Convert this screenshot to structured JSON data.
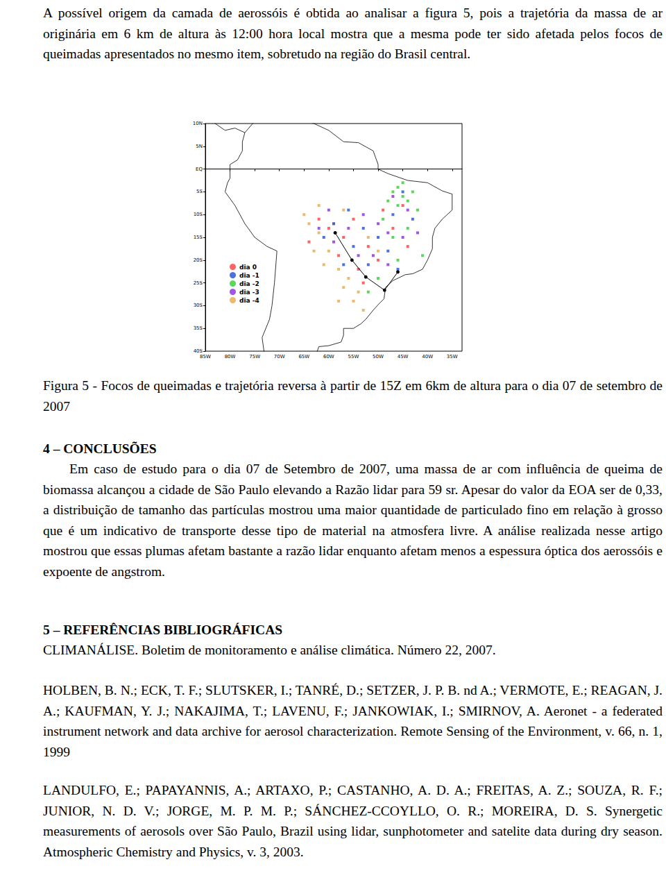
{
  "intro": "A possível origem da camada de aerossóis é obtida ao analisar a figura 5, pois a trajetória da massa de ar originária em 6 km de altura às 12:00 hora local mostra que a mesma pode ter sido afetada pelos focos de queimadas apresentados no mesmo item, sobretudo na região do Brasil central.",
  "chart_data": {
    "type": "scatter",
    "xlim": [
      -85,
      -33
    ],
    "xticks": [
      {
        "value": -85,
        "label": "85W"
      },
      {
        "value": -80,
        "label": "80W"
      },
      {
        "value": -75,
        "label": "75W"
      },
      {
        "value": -70,
        "label": "70W"
      },
      {
        "value": -65,
        "label": "65W"
      },
      {
        "value": -60,
        "label": "60W"
      },
      {
        "value": -55,
        "label": "55W"
      },
      {
        "value": -50,
        "label": "50W"
      },
      {
        "value": -45,
        "label": "45W"
      },
      {
        "value": -40,
        "label": "40W"
      },
      {
        "value": -35,
        "label": "35W"
      }
    ],
    "ylim": [
      -40,
      10
    ],
    "yticks": [
      {
        "value": -40,
        "label": "40S"
      },
      {
        "value": -35,
        "label": "35S"
      },
      {
        "value": -30,
        "label": "30S"
      },
      {
        "value": -25,
        "label": "25S"
      },
      {
        "value": -20,
        "label": "20S"
      },
      {
        "value": -15,
        "label": "15S"
      },
      {
        "value": -10,
        "label": "10S"
      },
      {
        "value": -5,
        "label": "5S"
      },
      {
        "value": 0,
        "label": "EQ"
      },
      {
        "value": 5,
        "label": "5N"
      },
      {
        "value": 10,
        "label": "10N"
      }
    ],
    "grid": false,
    "legend": "inside",
    "marker": "square",
    "series": [
      {
        "name": "dia 0",
        "color": "#ff3b3b",
        "values": [
          [
            -60,
            -13
          ],
          [
            -57,
            -15
          ],
          [
            -55,
            -11
          ],
          [
            -52,
            -17
          ],
          [
            -49,
            -9
          ],
          [
            -47,
            -13
          ],
          [
            -62,
            -11
          ],
          [
            -45,
            -8
          ],
          [
            -54,
            -22
          ],
          [
            -50,
            -20
          ],
          [
            -58,
            -19
          ],
          [
            -44,
            -17
          ],
          [
            -64,
            -16
          ],
          [
            -53,
            -25
          ]
        ]
      },
      {
        "name": "dia -1",
        "color": "#1e4fd8",
        "values": [
          [
            -59,
            -12
          ],
          [
            -56,
            -9
          ],
          [
            -53,
            -13
          ],
          [
            -50,
            -15
          ],
          [
            -47,
            -10
          ],
          [
            -45,
            -5
          ],
          [
            -61,
            -15
          ],
          [
            -48,
            -18
          ],
          [
            -55,
            -17
          ],
          [
            -43,
            -11
          ],
          [
            -52,
            -21
          ],
          [
            -57,
            -21
          ],
          [
            -46,
            -22
          ]
        ]
      },
      {
        "name": "dia -2",
        "color": "#33cc33",
        "values": [
          [
            -46,
            -4
          ],
          [
            -45,
            -6
          ],
          [
            -47,
            -5
          ],
          [
            -44,
            -7
          ],
          [
            -43,
            -5
          ],
          [
            -46,
            -8
          ],
          [
            -48,
            -7
          ],
          [
            -45,
            -3
          ],
          [
            -42,
            -9
          ],
          [
            -49,
            -11
          ],
          [
            -44,
            -13
          ],
          [
            -47,
            -15
          ],
          [
            -50,
            -24
          ],
          [
            -52,
            -27
          ],
          [
            -41,
            -19
          ],
          [
            -46,
            -20
          ]
        ]
      },
      {
        "name": "dia -3",
        "color": "#8a2be2",
        "values": [
          [
            -47,
            -6
          ],
          [
            -44,
            -9
          ],
          [
            -50,
            -12
          ],
          [
            -53,
            -10
          ],
          [
            -56,
            -13
          ],
          [
            -59,
            -16
          ],
          [
            -48,
            -14
          ],
          [
            -45,
            -15
          ],
          [
            -51,
            -19
          ],
          [
            -62,
            -13
          ],
          [
            -54,
            -19
          ],
          [
            -42,
            -14
          ],
          [
            -60,
            -9
          ],
          [
            -48,
            -21
          ]
        ]
      },
      {
        "name": "dia -4",
        "color": "#e8a84a",
        "values": [
          [
            -64,
            -12
          ],
          [
            -62,
            -14
          ],
          [
            -60,
            -18
          ],
          [
            -58,
            -22
          ],
          [
            -56,
            -24
          ],
          [
            -54,
            -27
          ],
          [
            -57,
            -26
          ],
          [
            -63,
            -18
          ],
          [
            -65,
            -10
          ],
          [
            -61,
            -21
          ],
          [
            -55,
            -29
          ],
          [
            -59,
            -12
          ],
          [
            -52,
            -15
          ],
          [
            -50,
            -18
          ],
          [
            -57,
            -9
          ],
          [
            -62,
            -8
          ],
          [
            -53,
            -31
          ],
          [
            -58,
            -29
          ]
        ]
      }
    ],
    "trajectory": {
      "color": "#000000",
      "marker": "circle",
      "line_style": "solid",
      "values": [
        [
          -58.7,
          -14
        ],
        [
          -55.3,
          -20
        ],
        [
          -52.5,
          -23.7
        ],
        [
          -48.7,
          -26.6
        ],
        [
          -46,
          -22.6
        ]
      ]
    },
    "coastline": [
      [
        -85,
        12
      ],
      [
        -83,
        10
      ],
      [
        -81,
        8.5
      ],
      [
        -79,
        9
      ],
      [
        -77,
        8
      ],
      [
        -75,
        10.5
      ],
      [
        -72,
        11.5
      ],
      [
        -68,
        10.8
      ],
      [
        -64,
        10.5
      ],
      [
        -60,
        8.5
      ],
      [
        -57,
        6
      ],
      [
        -54,
        5.8
      ],
      [
        -51,
        4
      ],
      [
        -50,
        1
      ],
      [
        -50,
        0
      ],
      [
        -48,
        -1
      ],
      [
        -44,
        -2.5
      ],
      [
        -40,
        -3
      ],
      [
        -37,
        -4.8
      ],
      [
        -35,
        -5.5
      ],
      [
        -35,
        -9
      ],
      [
        -37,
        -11
      ],
      [
        -38.5,
        -13
      ],
      [
        -39,
        -15
      ],
      [
        -39,
        -17.5
      ],
      [
        -40,
        -20
      ],
      [
        -41,
        -22
      ],
      [
        -43,
        -23
      ],
      [
        -44.5,
        -23.2
      ],
      [
        -47,
        -24.5
      ],
      [
        -48.5,
        -26
      ],
      [
        -48.8,
        -28.5
      ],
      [
        -50,
        -29.8
      ],
      [
        -51,
        -31
      ],
      [
        -52.5,
        -33
      ],
      [
        -53.5,
        -34
      ],
      [
        -55,
        -35
      ],
      [
        -57,
        -35
      ],
      [
        -57,
        -36.5
      ],
      [
        -57.5,
        -38
      ],
      [
        -60,
        -38.8
      ],
      [
        -62,
        -39
      ],
      [
        -62.5,
        -40.5
      ],
      [
        -73,
        -41
      ],
      [
        -73.5,
        -37
      ],
      [
        -72,
        -33
      ],
      [
        -71.5,
        -30
      ],
      [
        -71,
        -25
      ],
      [
        -70.5,
        -18
      ],
      [
        -72.5,
        -17
      ],
      [
        -75,
        -15
      ],
      [
        -77,
        -12
      ],
      [
        -79,
        -8
      ],
      [
        -81,
        -5
      ],
      [
        -80.5,
        -3
      ],
      [
        -80,
        -2
      ],
      [
        -80,
        1
      ],
      [
        -78.5,
        2
      ],
      [
        -77.5,
        4
      ],
      [
        -77.5,
        6
      ],
      [
        -77,
        8
      ]
    ]
  },
  "caption": "Figura 5 - Focos de queimadas e trajetória reversa à partir de 15Z em 6km de altura para o dia 07 de setembro de 2007",
  "conclusions": {
    "heading": "4 – CONCLUSÕES",
    "text": "Em caso de estudo para o dia 07 de Setembro de 2007, uma massa de ar com influência de queima de biomassa alcançou a cidade de São Paulo elevando a Razão lidar para 59 sr. Apesar do valor da EOA ser de 0,33, a distribuição de tamanho das partículas mostrou uma maior quantidade de particulado fino em relação à grosso que é um indicativo de transporte desse tipo de material na atmosfera livre. A análise realizada nesse artigo mostrou que essas plumas afetam bastante a razão lidar enquanto afetam menos a espessura óptica dos aerossóis e expoente de angstrom."
  },
  "references": {
    "heading": "5 – REFERÊNCIAS BIBLIOGRÁFICAS",
    "items": [
      "CLIMANÁLISE. Boletim de monitoramento e análise climática. Número 22, 2007.",
      "HOLBEN, B. N.; ECK, T. F.; SLUTSKER, I.; TANRÉ, D.; SETZER, J. P. B. nd A.; VERMOTE, E.; REAGAN, J. A.; KAUFMAN, Y. J.; NAKAJIMA, T.; LAVENU, F.; JANKOWIAK, I.; SMIRNOV, A. Aeronet - a federated instrument network and data archive for aerosol characterization. Remote Sensing of the Environment, v. 66, n. 1, 1999",
      "LANDULFO, E.; PAPAYANNIS, A.; ARTAXO, P.; CASTANHO, A. D. A.; FREITAS, A. Z.; SOUZA, R. F.; JUNIOR, N. D. V.; JORGE, M. P. M. P.; SÁNCHEZ-CCOYLLO, O. R.; MOREIRA, D. S. Synergetic measurements of aerosols over São Paulo, Brazil using lidar, sunphotometer and satelite data during dry season. Atmospheric Chemistry and Physics, v. 3, 2003."
    ]
  }
}
